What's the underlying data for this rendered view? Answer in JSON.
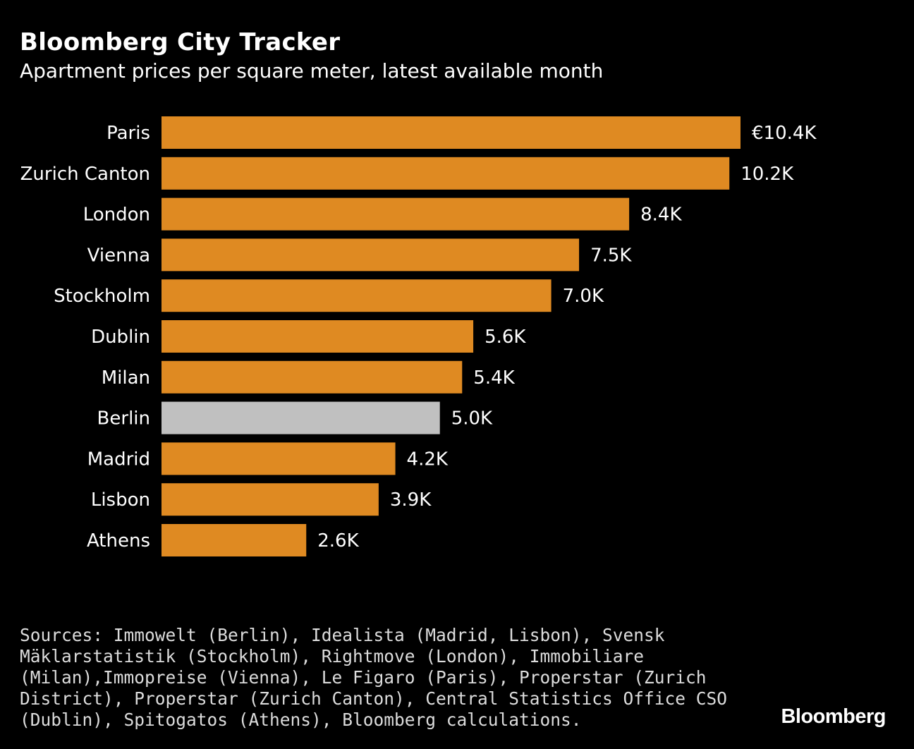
{
  "header": {
    "title": "Bloomberg City Tracker",
    "subtitle": "Apartment prices per square meter, latest available month"
  },
  "footer": {
    "sources": "Sources: Immowelt (Berlin), Idealista (Madrid, Lisbon), Svensk Mäklarstatistik (Stockholm), Rightmove (London), Immobiliare (Milan),Immopreise (Vienna), Le Figaro (Paris), Properstar (Zurich District), Properstar (Zurich Canton), Central Statistics Office CSO (Dublin), Spitogatos (Athens), Bloomberg calculations.",
    "brand": "Bloomberg"
  },
  "colors": {
    "background": "#000000",
    "bar": "#df8a22",
    "highlight": "#c0c0c0",
    "text": "#ffffff"
  },
  "chart_data": {
    "type": "bar",
    "orientation": "horizontal",
    "title": "Bloomberg City Tracker",
    "subtitle": "Apartment prices per square meter, latest available month",
    "unit": "EUR per square meter (thousands)",
    "xlim": [
      0,
      10.4
    ],
    "grid": false,
    "legend": "none",
    "categories": [
      "Paris",
      "Zurich Canton",
      "London",
      "Vienna",
      "Stockholm",
      "Dublin",
      "Milan",
      "Berlin",
      "Madrid",
      "Lisbon",
      "Athens"
    ],
    "values": [
      10.4,
      10.2,
      8.4,
      7.5,
      7.0,
      5.6,
      5.4,
      5.0,
      4.2,
      3.9,
      2.6
    ],
    "labels": [
      "€10.4K",
      "10.2K",
      "8.4K",
      "7.5K",
      "7.0K",
      "5.6K",
      "5.4K",
      "5.0K",
      "4.2K",
      "3.9K",
      "2.6K"
    ],
    "highlight": [
      "Berlin"
    ]
  }
}
